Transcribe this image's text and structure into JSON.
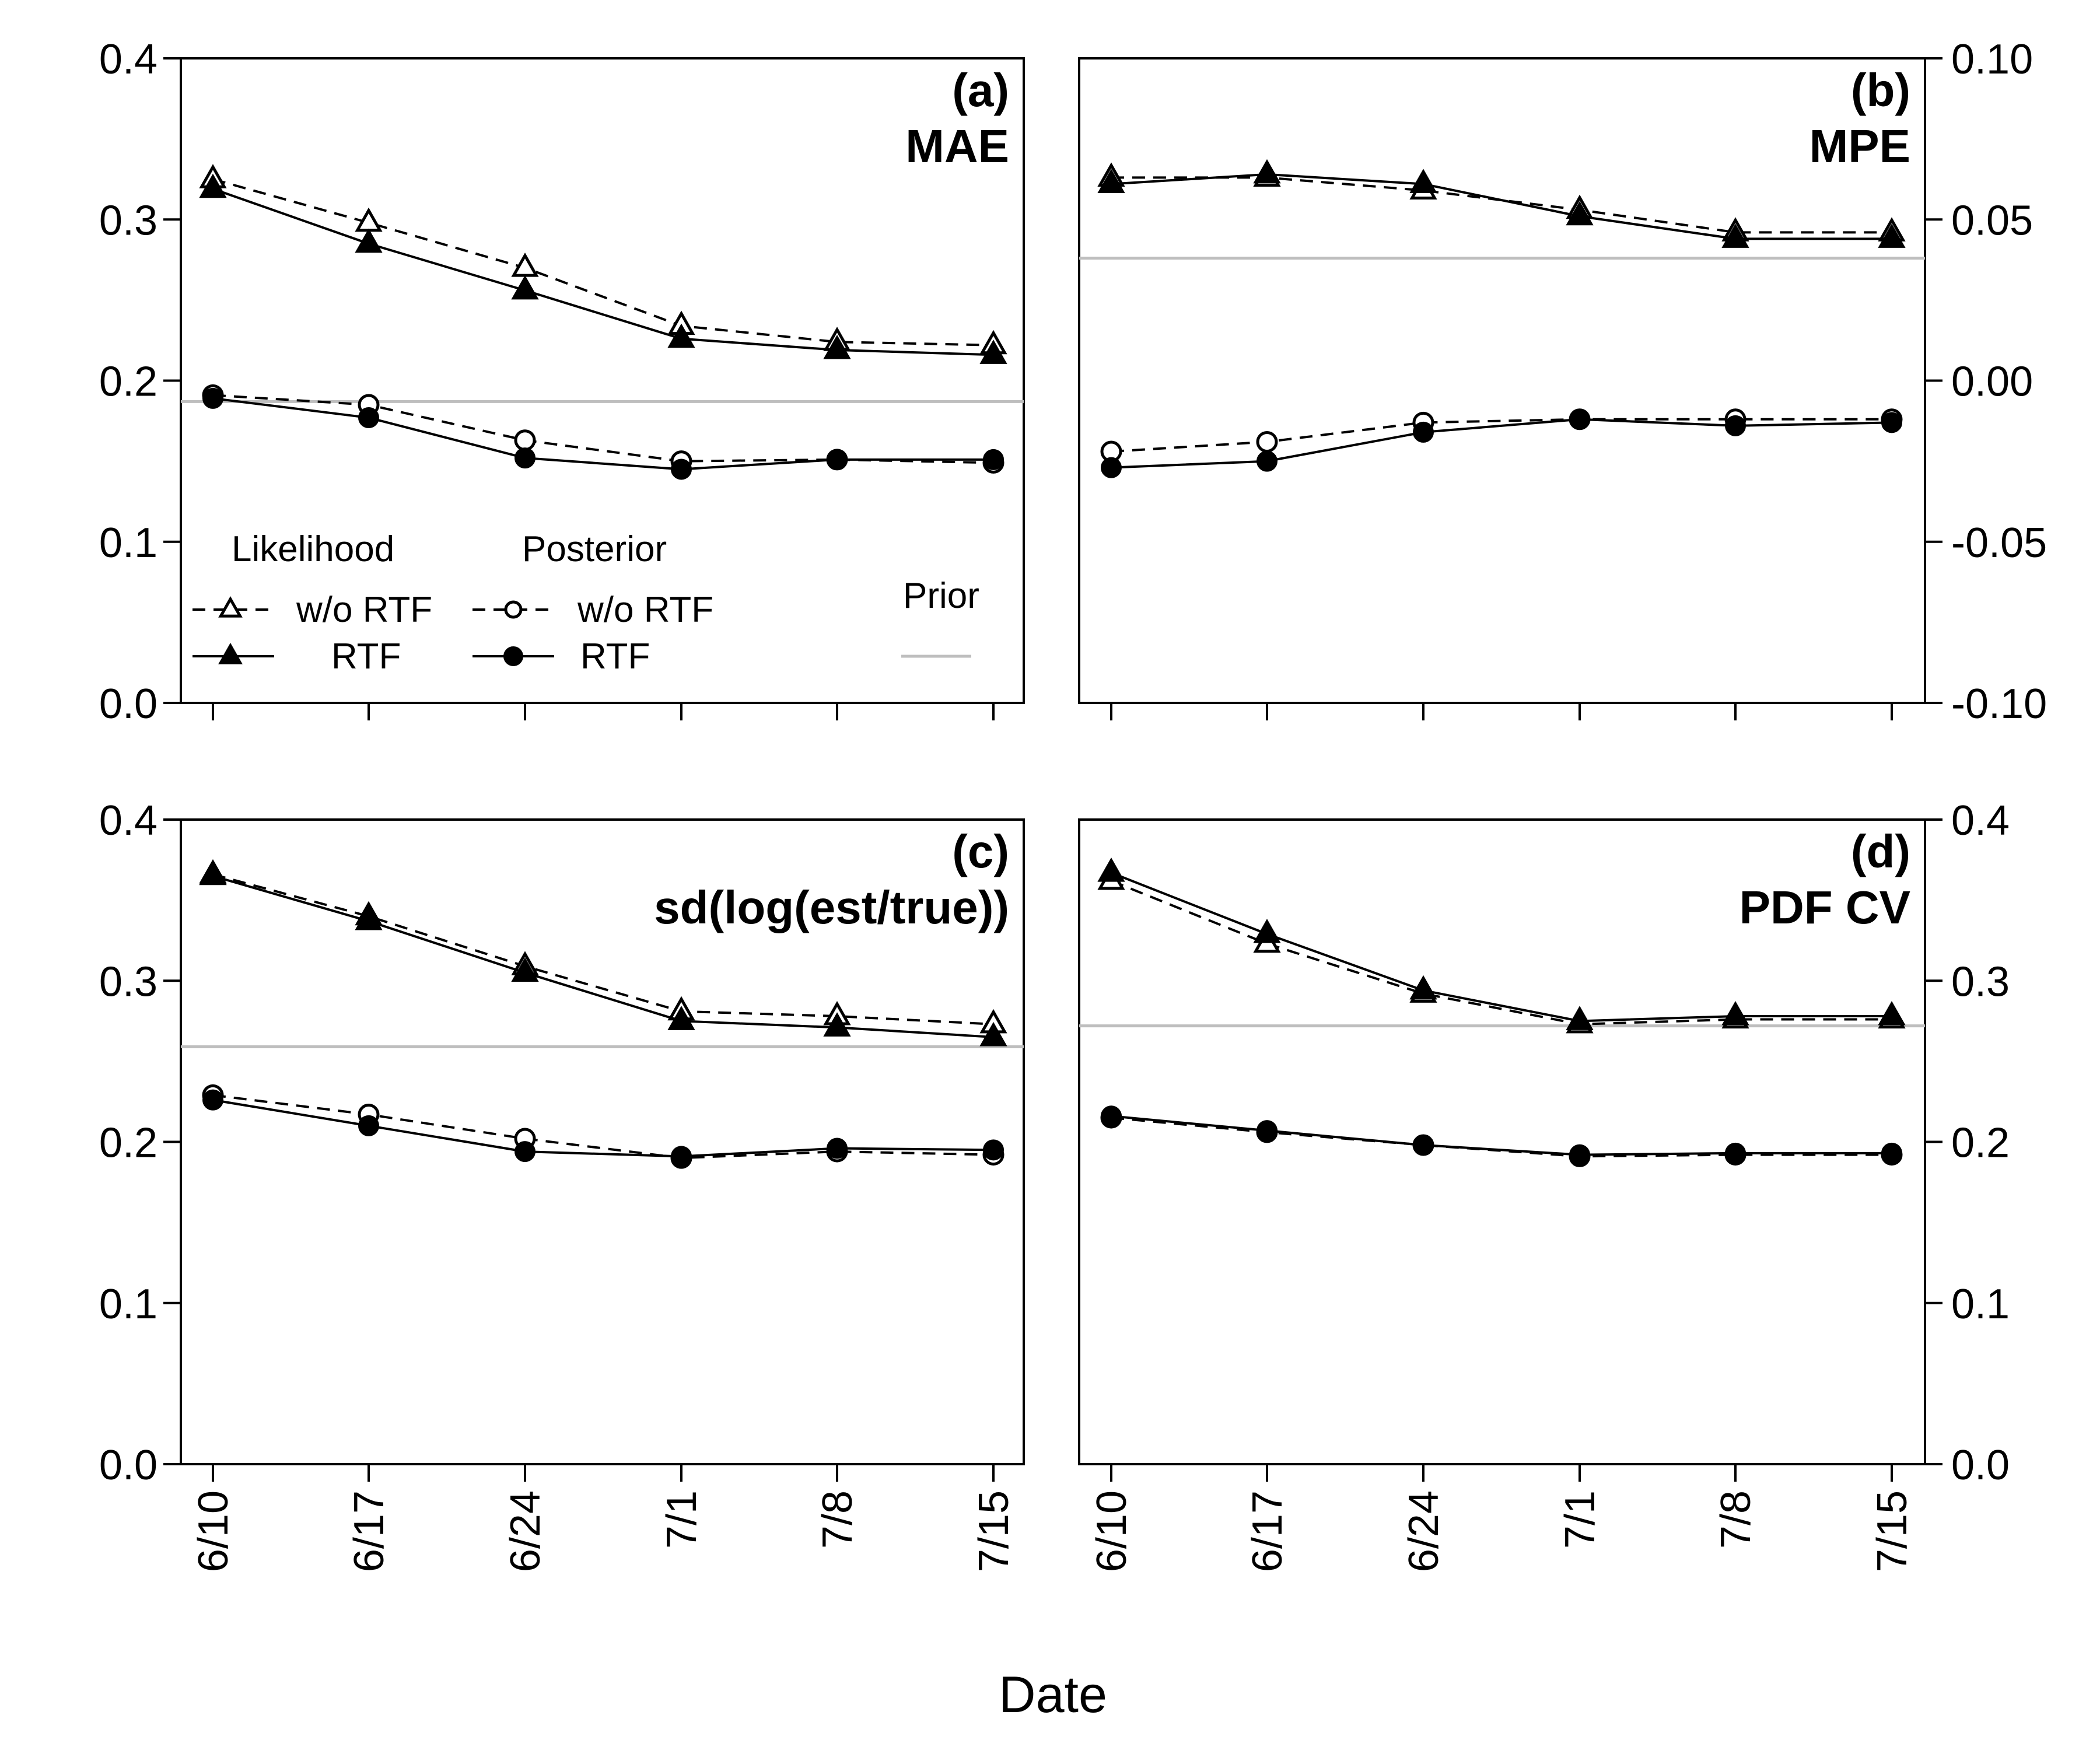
{
  "xlabel": "Date",
  "legend": {
    "likelihood_title": "Likelihood",
    "posterior_title": "Posterior",
    "prior_title": "Prior",
    "wo_rtf": "w/o RTF",
    "rtf": "RTF"
  },
  "colors": {
    "series": "#000000",
    "prior": "#bebebe",
    "background": "#ffffff"
  },
  "chart_data": [
    {
      "panel": "a",
      "type": "line",
      "label": "(a)",
      "title": "MAE",
      "x": [
        "6/10",
        "6/17",
        "6/24",
        "7/1",
        "7/8",
        "7/15"
      ],
      "y_axis_side": "left",
      "ylim": [
        0,
        0.4
      ],
      "yticks": [
        "0.0",
        "0.1",
        "0.2",
        "0.3",
        "0.4"
      ],
      "series": [
        {
          "name": "Likelihood w/o RTF",
          "values": [
            0.325,
            0.298,
            0.27,
            0.234,
            0.224,
            0.222
          ]
        },
        {
          "name": "Likelihood RTF",
          "values": [
            0.319,
            0.285,
            0.256,
            0.226,
            0.219,
            0.216
          ]
        },
        {
          "name": "Posterior w/o RTF",
          "values": [
            0.191,
            0.185,
            0.163,
            0.15,
            0.151,
            0.149
          ]
        },
        {
          "name": "Posterior RTF",
          "values": [
            0.189,
            0.177,
            0.152,
            0.145,
            0.151,
            0.151
          ]
        }
      ],
      "prior": 0.187,
      "legend_shown": true
    },
    {
      "panel": "b",
      "type": "line",
      "label": "(b)",
      "title": "MPE",
      "x": [
        "6/10",
        "6/17",
        "6/24",
        "7/1",
        "7/8",
        "7/15"
      ],
      "y_axis_side": "right",
      "ylim": [
        -0.1,
        0.1
      ],
      "yticks": [
        "-0.10",
        "-0.05",
        "0.00",
        "0.05",
        "0.10"
      ],
      "series": [
        {
          "name": "Likelihood w/o RTF",
          "values": [
            0.063,
            0.063,
            0.059,
            0.053,
            0.046,
            0.046
          ]
        },
        {
          "name": "Likelihood RTF",
          "values": [
            0.061,
            0.064,
            0.061,
            0.051,
            0.044,
            0.044
          ]
        },
        {
          "name": "Posterior w/o RTF",
          "values": [
            -0.022,
            -0.019,
            -0.013,
            -0.012,
            -0.012,
            -0.012
          ]
        },
        {
          "name": "Posterior RTF",
          "values": [
            -0.027,
            -0.025,
            -0.016,
            -0.012,
            -0.014,
            -0.013
          ]
        }
      ],
      "prior": 0.038
    },
    {
      "panel": "c",
      "type": "line",
      "label": "(c)",
      "title": "sd(log(est/true))",
      "x": [
        "6/10",
        "6/17",
        "6/24",
        "7/1",
        "7/8",
        "7/15"
      ],
      "y_axis_side": "left",
      "ylim": [
        0,
        0.4
      ],
      "yticks": [
        "0.0",
        "0.1",
        "0.2",
        "0.3",
        "0.4"
      ],
      "series": [
        {
          "name": "Likelihood w/o RTF",
          "values": [
            0.366,
            0.34,
            0.309,
            0.281,
            0.278,
            0.273
          ]
        },
        {
          "name": "Likelihood RTF",
          "values": [
            0.365,
            0.337,
            0.305,
            0.275,
            0.271,
            0.265
          ]
        },
        {
          "name": "Posterior w/o RTF",
          "values": [
            0.229,
            0.217,
            0.202,
            0.19,
            0.194,
            0.192
          ]
        },
        {
          "name": "Posterior RTF",
          "values": [
            0.226,
            0.21,
            0.194,
            0.191,
            0.196,
            0.195
          ]
        }
      ],
      "prior": 0.259
    },
    {
      "panel": "d",
      "type": "line",
      "label": "(d)",
      "title": "PDF CV",
      "x": [
        "6/10",
        "6/17",
        "6/24",
        "7/1",
        "7/8",
        "7/15"
      ],
      "y_axis_side": "right",
      "ylim": [
        0,
        0.4
      ],
      "yticks": [
        "0.0",
        "0.1",
        "0.2",
        "0.3",
        "0.4"
      ],
      "series": [
        {
          "name": "Likelihood w/o RTF",
          "values": [
            0.362,
            0.323,
            0.292,
            0.273,
            0.276,
            0.276
          ]
        },
        {
          "name": "Likelihood RTF",
          "values": [
            0.367,
            0.329,
            0.294,
            0.275,
            0.278,
            0.278
          ]
        },
        {
          "name": "Posterior w/o RTF",
          "values": [
            0.215,
            0.206,
            0.198,
            0.191,
            0.192,
            0.192
          ]
        },
        {
          "name": "Posterior RTF",
          "values": [
            0.216,
            0.207,
            0.198,
            0.192,
            0.193,
            0.193
          ]
        }
      ],
      "prior": 0.272
    }
  ]
}
